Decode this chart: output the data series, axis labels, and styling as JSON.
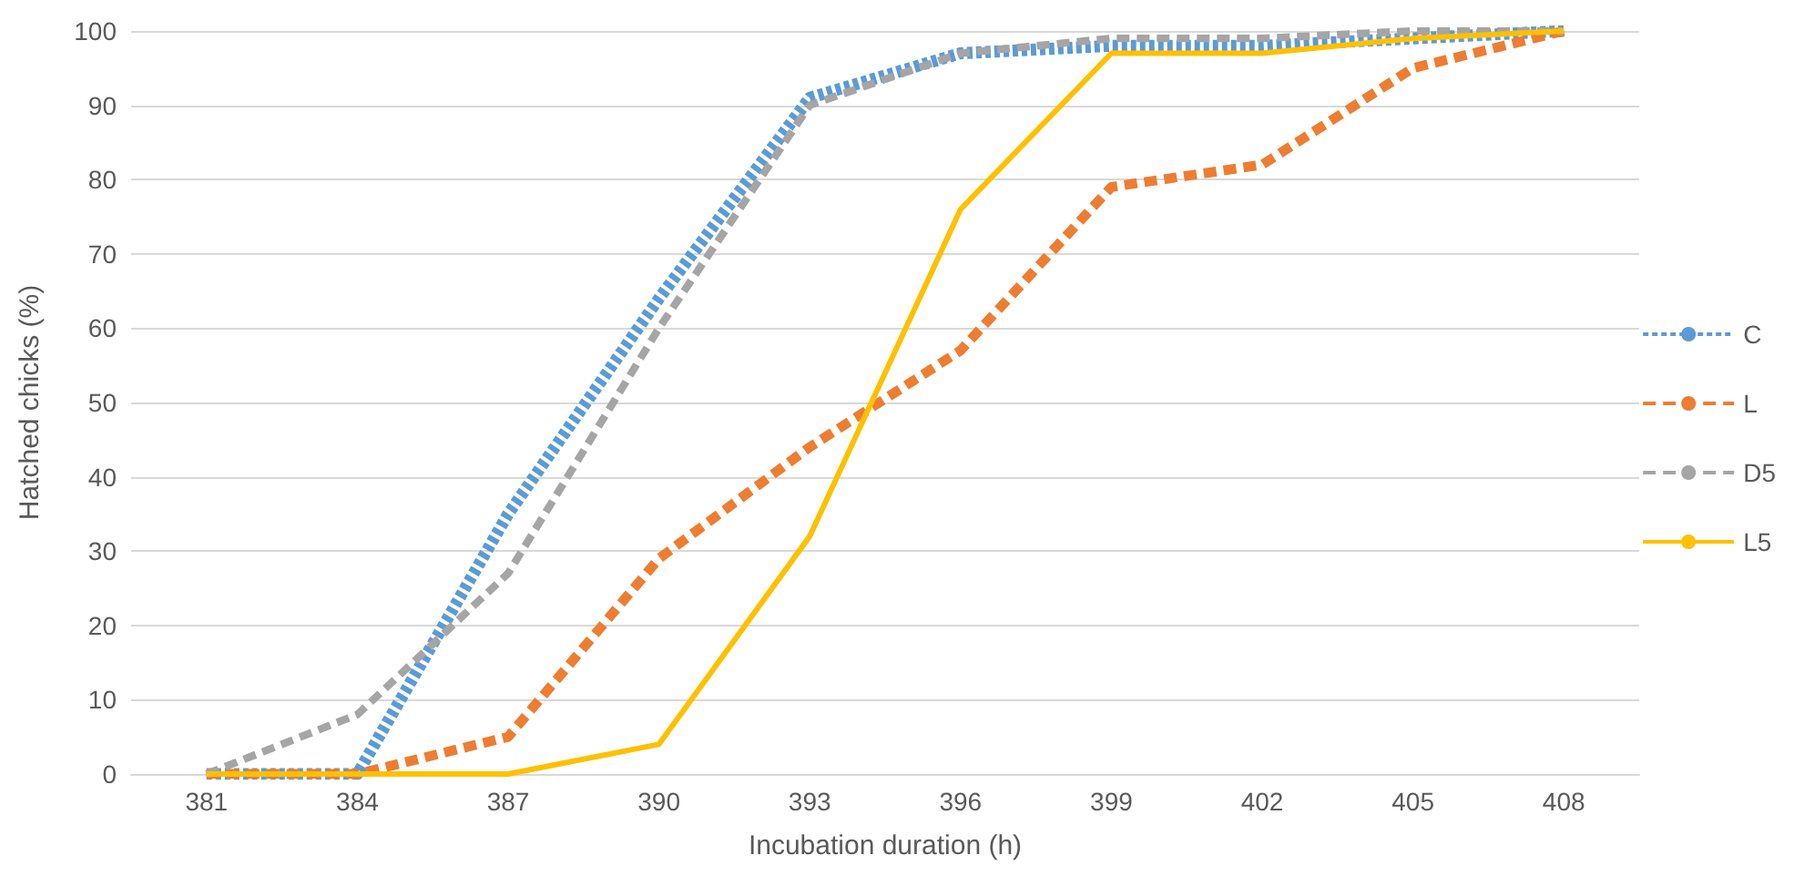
{
  "chart_data": {
    "type": "line",
    "xlabel": "Incubation duration (h)",
    "ylabel": "Hatched chicks (%)",
    "categories": [
      "381",
      "384",
      "387",
      "390",
      "393",
      "396",
      "399",
      "402",
      "405",
      "408"
    ],
    "series": [
      {
        "name": "C",
        "color": "#5b9bd5",
        "line_style": "dotted",
        "values": [
          0,
          0,
          35,
          64,
          91,
          97,
          98,
          98,
          99,
          100
        ]
      },
      {
        "name": "L",
        "color": "#ed7d31",
        "line_style": "dashed",
        "values": [
          0,
          0,
          5,
          29,
          44,
          57,
          79,
          82,
          95,
          100
        ]
      },
      {
        "name": "D5",
        "color": "#a5a5a5",
        "line_style": "dashed",
        "values": [
          0,
          8,
          27,
          60,
          90,
          97,
          99,
          99,
          100,
          100
        ]
      },
      {
        "name": "L5",
        "color": "#ffc000",
        "line_style": "solid",
        "values": [
          0,
          0,
          0,
          4,
          32,
          76,
          97,
          97,
          99,
          100
        ]
      }
    ],
    "ylim": [
      0,
      100
    ],
    "yticks": [
      0,
      10,
      20,
      30,
      40,
      50,
      60,
      70,
      80,
      90,
      100
    ],
    "grid": "y",
    "legend": "right",
    "marker": "none"
  }
}
